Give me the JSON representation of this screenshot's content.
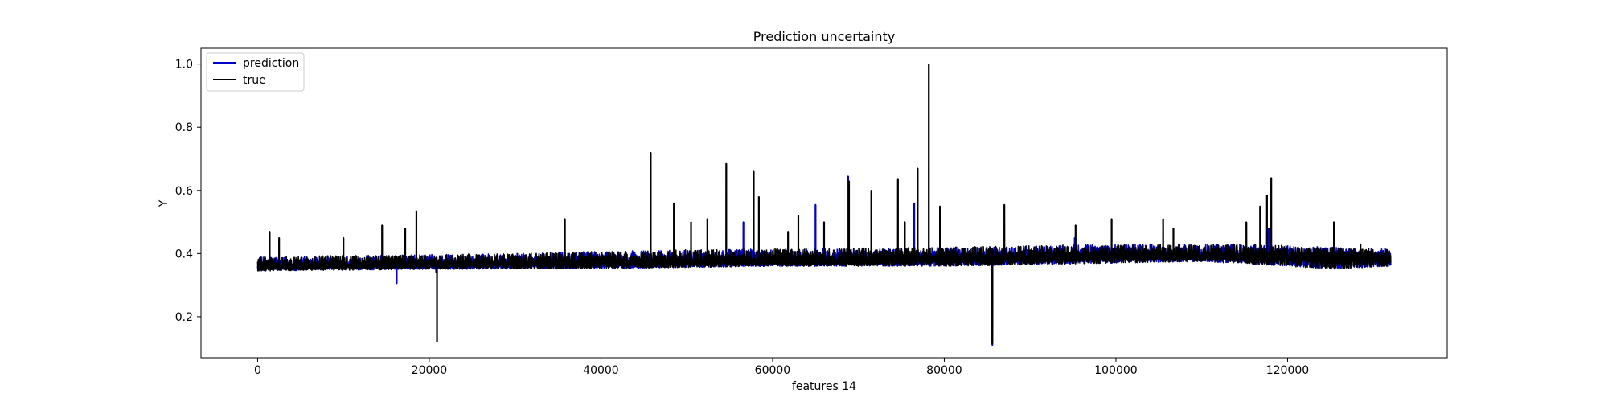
{
  "chart_data": {
    "type": "line",
    "title": "Prediction uncertainty",
    "xlabel": "features 14",
    "ylabel": "Y",
    "xlim": [
      -6600,
      138600
    ],
    "ylim": [
      0.07,
      1.05
    ],
    "x_ticks": [
      0,
      20000,
      40000,
      60000,
      80000,
      100000,
      120000
    ],
    "x_tick_labels": [
      "0",
      "20000",
      "40000",
      "60000",
      "80000",
      "100000",
      "120000"
    ],
    "y_ticks": [
      0.2,
      0.4,
      0.6,
      0.8,
      1.0
    ],
    "y_tick_labels": [
      "0.2",
      "0.4",
      "0.6",
      "0.8",
      "1.0"
    ],
    "grid": false,
    "legend": "upper-left",
    "x_range": [
      0,
      132000
    ],
    "series": [
      {
        "name": "prediction",
        "color": "#0000cc",
        "baseline": [
          [
            0,
            0.36
          ],
          [
            10000,
            0.365
          ],
          [
            30000,
            0.37
          ],
          [
            50000,
            0.375
          ],
          [
            70000,
            0.38
          ],
          [
            90000,
            0.39
          ],
          [
            100000,
            0.395
          ],
          [
            115000,
            0.395
          ],
          [
            125000,
            0.39
          ],
          [
            132000,
            0.39
          ]
        ],
        "band_low": [
          [
            0,
            0.345
          ],
          [
            20000,
            0.35
          ],
          [
            40000,
            0.352
          ],
          [
            60000,
            0.36
          ],
          [
            80000,
            0.36
          ],
          [
            90000,
            0.365
          ],
          [
            100000,
            0.37
          ],
          [
            110000,
            0.375
          ],
          [
            120000,
            0.36
          ],
          [
            125000,
            0.35
          ],
          [
            132000,
            0.36
          ]
        ],
        "band_high": [
          [
            0,
            0.39
          ],
          [
            15000,
            0.395
          ],
          [
            30000,
            0.4
          ],
          [
            45000,
            0.41
          ],
          [
            60000,
            0.415
          ],
          [
            80000,
            0.42
          ],
          [
            90000,
            0.425
          ],
          [
            100000,
            0.43
          ],
          [
            115000,
            0.43
          ],
          [
            125000,
            0.42
          ],
          [
            132000,
            0.415
          ]
        ],
        "spikes": [
          [
            16200,
            0.305
          ],
          [
            20800,
            0.34
          ],
          [
            56600,
            0.5
          ],
          [
            65000,
            0.555
          ],
          [
            68800,
            0.645
          ],
          [
            76500,
            0.56
          ],
          [
            85600,
            0.11
          ],
          [
            95200,
            0.45
          ],
          [
            104000,
            0.43
          ],
          [
            117800,
            0.48
          ],
          [
            123000,
            0.42
          ]
        ]
      },
      {
        "name": "true",
        "color": "#000000",
        "baseline": [
          [
            0,
            0.36
          ],
          [
            10000,
            0.365
          ],
          [
            30000,
            0.37
          ],
          [
            50000,
            0.375
          ],
          [
            70000,
            0.38
          ],
          [
            90000,
            0.39
          ],
          [
            100000,
            0.395
          ],
          [
            115000,
            0.395
          ],
          [
            125000,
            0.39
          ],
          [
            132000,
            0.39
          ]
        ],
        "band_low": [
          [
            0,
            0.345
          ],
          [
            20000,
            0.35
          ],
          [
            40000,
            0.352
          ],
          [
            60000,
            0.36
          ],
          [
            80000,
            0.36
          ],
          [
            90000,
            0.365
          ],
          [
            100000,
            0.37
          ],
          [
            110000,
            0.375
          ],
          [
            120000,
            0.36
          ],
          [
            125000,
            0.35
          ],
          [
            132000,
            0.36
          ]
        ],
        "band_high": [
          [
            0,
            0.39
          ],
          [
            15000,
            0.395
          ],
          [
            30000,
            0.4
          ],
          [
            45000,
            0.41
          ],
          [
            60000,
            0.415
          ],
          [
            80000,
            0.42
          ],
          [
            90000,
            0.425
          ],
          [
            100000,
            0.43
          ],
          [
            115000,
            0.43
          ],
          [
            125000,
            0.42
          ],
          [
            132000,
            0.415
          ]
        ],
        "spikes": [
          [
            1400,
            0.47
          ],
          [
            2500,
            0.45
          ],
          [
            10000,
            0.45
          ],
          [
            14500,
            0.49
          ],
          [
            17200,
            0.48
          ],
          [
            18500,
            0.535
          ],
          [
            20900,
            0.12
          ],
          [
            35800,
            0.51
          ],
          [
            45800,
            0.72
          ],
          [
            48500,
            0.56
          ],
          [
            50500,
            0.5
          ],
          [
            52400,
            0.51
          ],
          [
            54600,
            0.685
          ],
          [
            57800,
            0.66
          ],
          [
            58400,
            0.58
          ],
          [
            61800,
            0.47
          ],
          [
            63000,
            0.52
          ],
          [
            66000,
            0.5
          ],
          [
            68900,
            0.63
          ],
          [
            71500,
            0.6
          ],
          [
            74600,
            0.635
          ],
          [
            75400,
            0.5
          ],
          [
            76900,
            0.67
          ],
          [
            78200,
            1.0
          ],
          [
            79500,
            0.55
          ],
          [
            85600,
            0.115
          ],
          [
            87000,
            0.555
          ],
          [
            95300,
            0.49
          ],
          [
            99500,
            0.51
          ],
          [
            105500,
            0.51
          ],
          [
            106700,
            0.48
          ],
          [
            115200,
            0.5
          ],
          [
            116800,
            0.55
          ],
          [
            117600,
            0.585
          ],
          [
            118100,
            0.64
          ],
          [
            125400,
            0.5
          ],
          [
            128500,
            0.43
          ]
        ]
      }
    ]
  }
}
